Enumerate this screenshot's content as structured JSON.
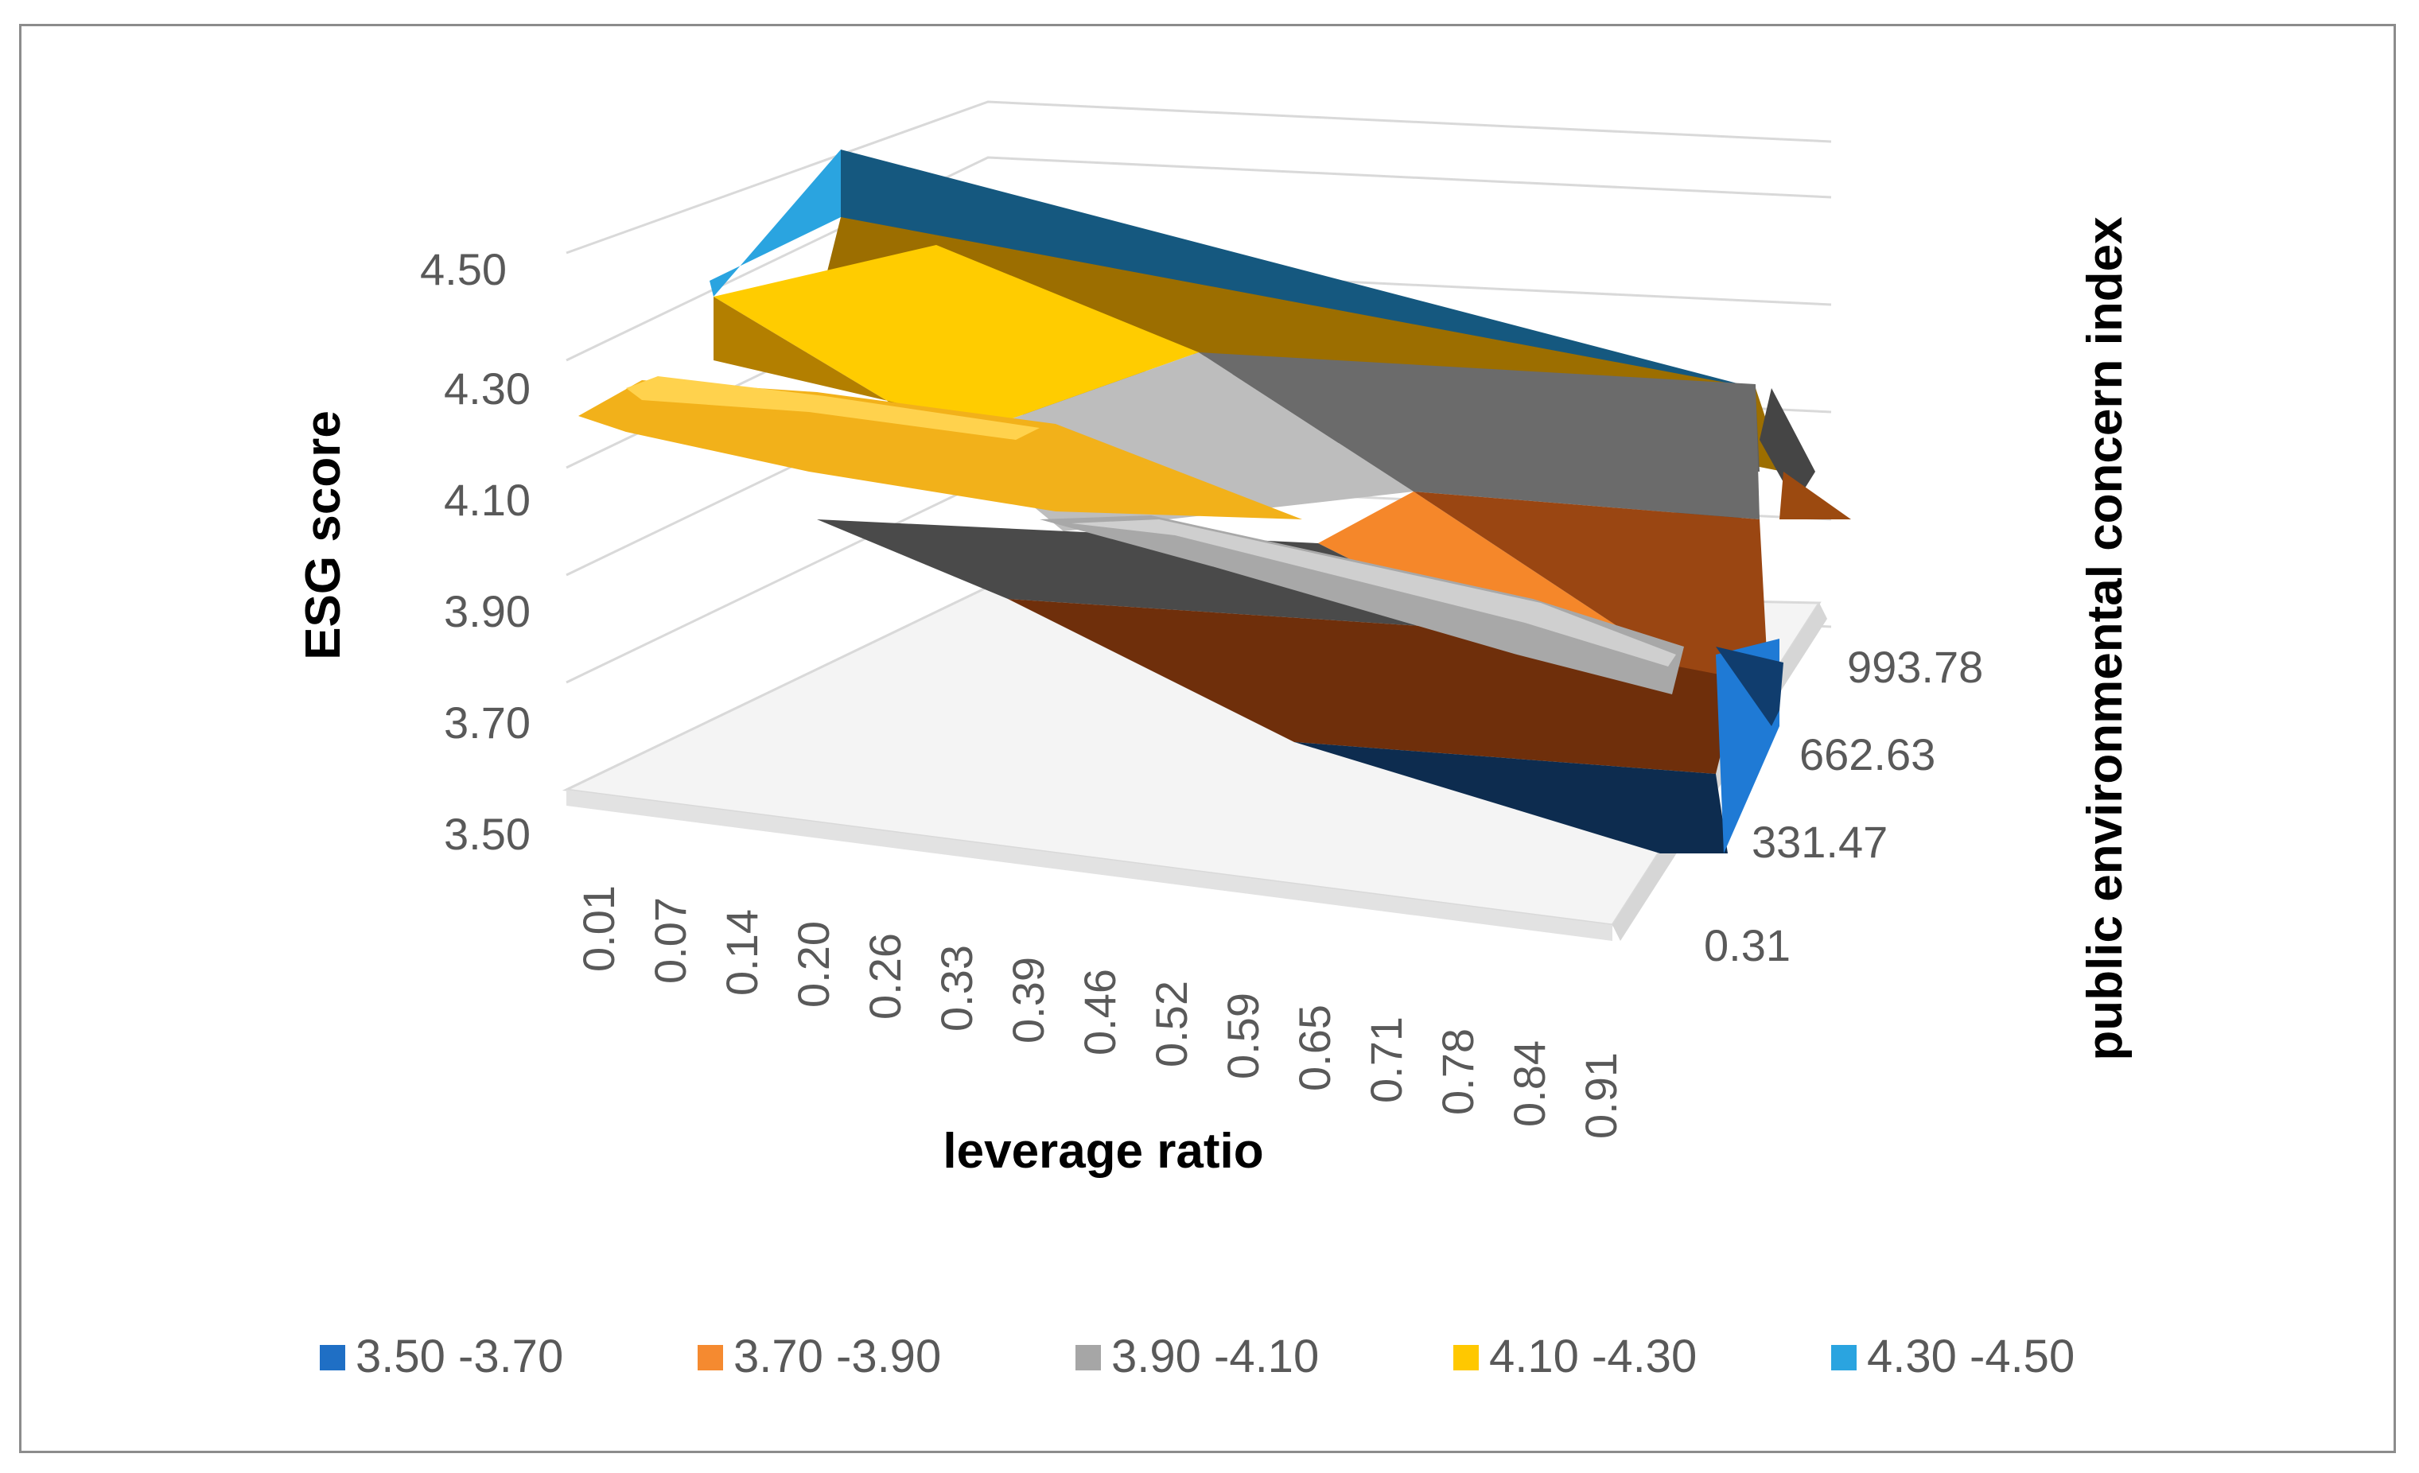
{
  "chart_data": {
    "type": "surface",
    "title": "",
    "xlabel": "leverage ratio",
    "ylabel": "ESG score",
    "zlabel": "public environmental concern index",
    "x_ticks": [
      "0.01",
      "0.07",
      "0.14",
      "0.20",
      "0.26",
      "0.33",
      "0.39",
      "0.46",
      "0.52",
      "0.59",
      "0.65",
      "0.71",
      "0.78",
      "0.84",
      "0.91"
    ],
    "depth_ticks": [
      "0.31",
      "331.47",
      "662.63",
      "993.78"
    ],
    "y_ticks": [
      "3.50",
      "3.70",
      "3.90",
      "4.10",
      "4.30",
      "4.50"
    ],
    "ylim": [
      3.5,
      4.5
    ],
    "legend": [
      {
        "label": "3.50 -3.70",
        "color": "#1f6fc5"
      },
      {
        "label": "3.70 -3.90",
        "color": "#f58a30"
      },
      {
        "label": "3.90 -4.10",
        "color": "#a6a6a6"
      },
      {
        "label": "4.10 -4.30",
        "color": "#ffc800"
      },
      {
        "label": "4.30 -4.50",
        "color": "#2aa4e0"
      }
    ],
    "surface": {
      "rows": [
        {
          "depth": "0.31",
          "esg_at_low_leverage": 4.28,
          "esg_at_high_leverage": 3.6
        },
        {
          "depth": "993.78",
          "esg_at_low_leverage": 4.55,
          "esg_at_high_leverage": 4.25
        }
      ]
    }
  }
}
